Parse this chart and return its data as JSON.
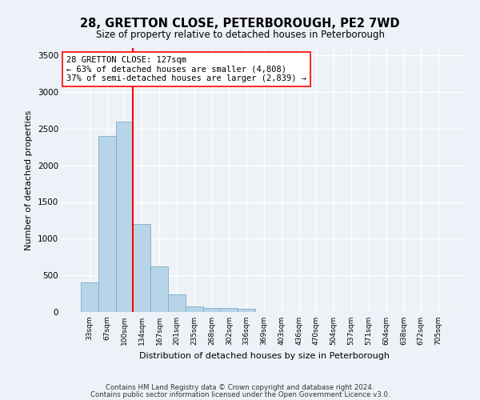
{
  "title": "28, GRETTON CLOSE, PETERBOROUGH, PE2 7WD",
  "subtitle": "Size of property relative to detached houses in Peterborough",
  "xlabel": "Distribution of detached houses by size in Peterborough",
  "ylabel": "Number of detached properties",
  "categories": [
    "33sqm",
    "67sqm",
    "100sqm",
    "134sqm",
    "167sqm",
    "201sqm",
    "235sqm",
    "268sqm",
    "302sqm",
    "336sqm",
    "369sqm",
    "403sqm",
    "436sqm",
    "470sqm",
    "504sqm",
    "537sqm",
    "571sqm",
    "604sqm",
    "638sqm",
    "672sqm",
    "705sqm"
  ],
  "values": [
    400,
    2400,
    2600,
    1200,
    620,
    240,
    80,
    60,
    55,
    40,
    5,
    5,
    3,
    2,
    1,
    1,
    0,
    0,
    0,
    0,
    0
  ],
  "bar_color": "#b8d4e8",
  "bar_edge_color": "#7aaec8",
  "vline_color": "red",
  "vline_pos": 2.5,
  "annotation_text": "28 GRETTON CLOSE: 127sqm\n← 63% of detached houses are smaller (4,808)\n37% of semi-detached houses are larger (2,839) →",
  "annotation_box_color": "white",
  "annotation_box_edge": "red",
  "ylim": [
    0,
    3600
  ],
  "yticks": [
    0,
    500,
    1000,
    1500,
    2000,
    2500,
    3000,
    3500
  ],
  "footer1": "Contains HM Land Registry data © Crown copyright and database right 2024.",
  "footer2": "Contains public sector information licensed under the Open Government Licence v3.0.",
  "bg_color": "#eef2f8",
  "plot_bg_color": "#eef2f8",
  "grid_color": "white",
  "title_fontsize": 10.5,
  "subtitle_fontsize": 8.5
}
